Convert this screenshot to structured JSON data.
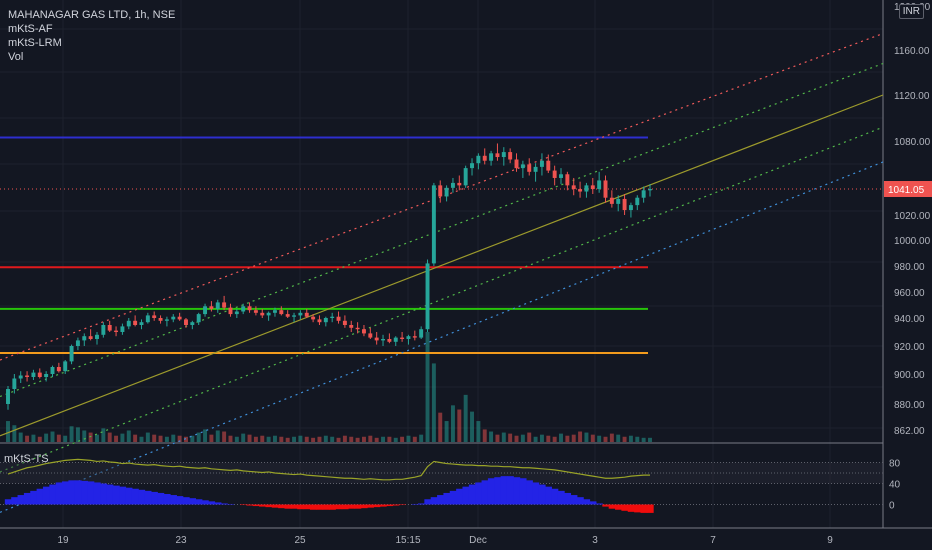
{
  "legend": {
    "title": "MAHANAGAR GAS LTD, 1h, NSE",
    "indicators": [
      "mKtS-AF",
      "mKtS-LRM",
      "Vol"
    ]
  },
  "currency": "INR",
  "oscillator_label": "mKtS-TS",
  "colors": {
    "background": "#131722",
    "up": "#26a69a",
    "down": "#ef5350",
    "price_tag": "#ef5350",
    "resistance_blue": "#2e2ecf",
    "level_red": "#e0191c",
    "level_green": "#27c40a",
    "level_orange": "#f29b1d",
    "channel_upper": "#f05a5a",
    "channel_mid": "#52b84a",
    "channel_center": "#9c9a2c",
    "channel_lower": "#3f8fd9",
    "histogram_blue": "#2323e6",
    "histogram_red": "#f00c0c",
    "ts_line": "#9aa428"
  },
  "chart_data": [
    {
      "type": "candlestick",
      "title": "MAHANAGAR GAS LTD, 1h, NSE",
      "x_tick_labels": [
        "19",
        "23",
        "25",
        "15:15",
        "Dec",
        "3",
        "7",
        "9"
      ],
      "y_ticks": [
        862,
        880,
        900,
        920,
        940,
        960,
        980,
        1000,
        1020,
        1041.05,
        1080,
        1120,
        1160,
        1200
      ],
      "y_tick_labels": [
        "862.00",
        "880.00",
        "900.00",
        "920.00",
        "940.00",
        "960.00",
        "980.00",
        "1000.00",
        "1020.00",
        "1041.05",
        "1080.00",
        "1120.00",
        "1160.00",
        "1200.00"
      ],
      "last_price": 1041.05,
      "last_price_label": "1041.05",
      "ylim": [
        855,
        1200
      ],
      "horizontal_levels": [
        {
          "price": 1083,
          "color": "resistance_blue"
        },
        {
          "price": 979,
          "color": "level_red"
        },
        {
          "price": 947,
          "color": "level_green"
        },
        {
          "price": 915,
          "color": "level_orange"
        }
      ],
      "channel_lines": [
        {
          "color": "channel_upper",
          "style": "dotted",
          "start": 910,
          "end": 1175
        },
        {
          "color": "channel_mid",
          "style": "dotted",
          "start": 885,
          "end": 1148
        },
        {
          "color": "channel_center",
          "style": "solid",
          "start": 858,
          "end": 1120
        },
        {
          "color": "channel_mid",
          "style": "dotted",
          "start": 833,
          "end": 1092
        },
        {
          "color": "channel_lower",
          "style": "dotted",
          "start": 805,
          "end": 1063
        }
      ],
      "candles": [
        [
          880,
          892,
          876,
          890
        ],
        [
          890,
          900,
          887,
          897
        ],
        [
          897,
          902,
          894,
          899
        ],
        [
          899,
          902,
          895,
          898
        ],
        [
          898,
          903,
          896,
          901
        ],
        [
          901,
          904,
          897,
          898
        ],
        [
          898,
          902,
          895,
          900
        ],
        [
          900,
          906,
          898,
          905
        ],
        [
          905,
          908,
          901,
          902
        ],
        [
          902,
          910,
          900,
          909
        ],
        [
          909,
          921,
          907,
          920
        ],
        [
          920,
          926,
          917,
          924
        ],
        [
          924,
          929,
          920,
          927
        ],
        [
          927,
          932,
          924,
          925
        ],
        [
          925,
          930,
          921,
          928
        ],
        [
          928,
          937,
          926,
          935
        ],
        [
          935,
          938,
          930,
          931
        ],
        [
          931,
          934,
          927,
          930
        ],
        [
          930,
          936,
          928,
          934
        ],
        [
          934,
          940,
          932,
          938
        ],
        [
          938,
          942,
          934,
          935
        ],
        [
          935,
          939,
          932,
          937
        ],
        [
          937,
          944,
          936,
          942
        ],
        [
          942,
          945,
          938,
          940
        ],
        [
          940,
          942,
          936,
          938
        ],
        [
          938,
          941,
          934,
          939
        ],
        [
          939,
          943,
          937,
          941
        ],
        [
          941,
          944,
          938,
          939
        ],
        [
          939,
          940,
          933,
          935
        ],
        [
          935,
          938,
          932,
          937
        ],
        [
          937,
          944,
          935,
          943
        ],
        [
          943,
          951,
          941,
          949
        ],
        [
          949,
          953,
          945,
          947
        ],
        [
          947,
          954,
          944,
          952
        ],
        [
          952,
          957,
          946,
          948
        ],
        [
          948,
          951,
          941,
          943
        ],
        [
          943,
          947,
          940,
          945
        ],
        [
          945,
          951,
          943,
          949
        ],
        [
          949,
          952,
          944,
          946
        ],
        [
          946,
          949,
          942,
          944
        ],
        [
          944,
          947,
          940,
          942
        ],
        [
          942,
          945,
          938,
          944
        ],
        [
          944,
          948,
          941,
          946
        ],
        [
          946,
          949,
          942,
          943
        ],
        [
          943,
          946,
          940,
          941
        ],
        [
          941,
          944,
          937,
          942
        ],
        [
          942,
          946,
          939,
          944
        ],
        [
          944,
          947,
          940,
          941
        ],
        [
          941,
          943,
          937,
          939
        ],
        [
          939,
          942,
          935,
          937
        ],
        [
          937,
          941,
          934,
          940
        ],
        [
          940,
          944,
          937,
          941
        ],
        [
          941,
          945,
          936,
          938
        ],
        [
          938,
          942,
          933,
          935
        ],
        [
          935,
          938,
          930,
          933
        ],
        [
          933,
          937,
          929,
          932
        ],
        [
          932,
          935,
          927,
          929
        ],
        [
          929,
          933,
          925,
          926
        ],
        [
          926,
          930,
          921,
          924
        ],
        [
          924,
          928,
          920,
          925
        ],
        [
          925,
          929,
          922,
          923
        ],
        [
          923,
          927,
          920,
          926
        ],
        [
          926,
          930,
          923,
          925
        ],
        [
          925,
          928,
          921,
          927
        ],
        [
          927,
          931,
          924,
          926
        ],
        [
          926,
          934,
          925,
          932
        ],
        [
          932,
          985,
          930,
          982
        ],
        [
          982,
          1046,
          980,
          1044
        ],
        [
          1044,
          1048,
          1030,
          1035
        ],
        [
          1035,
          1044,
          1031,
          1042
        ],
        [
          1042,
          1050,
          1038,
          1046
        ],
        [
          1046,
          1052,
          1040,
          1044
        ],
        [
          1044,
          1060,
          1042,
          1058
        ],
        [
          1058,
          1066,
          1052,
          1062
        ],
        [
          1062,
          1070,
          1057,
          1068
        ],
        [
          1068,
          1074,
          1061,
          1064
        ],
        [
          1064,
          1072,
          1060,
          1070
        ],
        [
          1070,
          1078,
          1064,
          1067
        ],
        [
          1067,
          1075,
          1060,
          1071
        ],
        [
          1071,
          1074,
          1062,
          1065
        ],
        [
          1065,
          1070,
          1055,
          1058
        ],
        [
          1058,
          1064,
          1050,
          1061
        ],
        [
          1061,
          1066,
          1052,
          1055
        ],
        [
          1055,
          1062,
          1047,
          1059
        ],
        [
          1059,
          1070,
          1052,
          1064
        ],
        [
          1064,
          1069,
          1054,
          1056
        ],
        [
          1056,
          1060,
          1044,
          1050
        ],
        [
          1050,
          1058,
          1045,
          1053
        ],
        [
          1053,
          1055,
          1040,
          1044
        ],
        [
          1044,
          1050,
          1036,
          1041
        ],
        [
          1041,
          1047,
          1034,
          1039
        ],
        [
          1039,
          1046,
          1034,
          1044
        ],
        [
          1044,
          1050,
          1037,
          1041
        ],
        [
          1041,
          1055,
          1038,
          1048
        ],
        [
          1048,
          1052,
          1030,
          1034
        ],
        [
          1034,
          1040,
          1026,
          1029
        ],
        [
          1029,
          1036,
          1023,
          1033
        ],
        [
          1033,
          1037,
          1020,
          1024
        ],
        [
          1024,
          1030,
          1018,
          1028
        ],
        [
          1028,
          1036,
          1024,
          1034
        ],
        [
          1034,
          1043,
          1030,
          1040
        ],
        [
          1040,
          1045,
          1035,
          1041
        ]
      ],
      "volumes": [
        40,
        32,
        18,
        12,
        14,
        10,
        16,
        20,
        14,
        12,
        30,
        28,
        22,
        18,
        14,
        26,
        18,
        12,
        16,
        22,
        14,
        10,
        18,
        14,
        12,
        10,
        14,
        12,
        10,
        12,
        18,
        24,
        14,
        22,
        20,
        12,
        10,
        16,
        14,
        10,
        12,
        10,
        12,
        10,
        8,
        10,
        12,
        10,
        8,
        10,
        12,
        10,
        8,
        12,
        10,
        8,
        10,
        12,
        8,
        10,
        10,
        8,
        10,
        12,
        10,
        14,
        210,
        150,
        56,
        40,
        70,
        62,
        90,
        58,
        40,
        24,
        20,
        14,
        18,
        16,
        12,
        14,
        18,
        10,
        14,
        12,
        10,
        16,
        12,
        14,
        20,
        18,
        14,
        12,
        10,
        16,
        14,
        10,
        12,
        10,
        8,
        8
      ]
    },
    {
      "type": "oscillator",
      "title": "mKtS-TS",
      "y_ticks": [
        0,
        40,
        80
      ],
      "y_tick_labels": [
        "0",
        "40",
        "80"
      ],
      "ylim": [
        -20,
        100
      ],
      "line": [
        58,
        62,
        66,
        70,
        72,
        75,
        78,
        80,
        82,
        84,
        85,
        86,
        85,
        84,
        82,
        83,
        81,
        80,
        78,
        79,
        77,
        76,
        75,
        76,
        74,
        73,
        72,
        73,
        71,
        70,
        69,
        70,
        68,
        67,
        66,
        65,
        66,
        64,
        63,
        62,
        61,
        62,
        60,
        59,
        58,
        57,
        58,
        56,
        55,
        54,
        53,
        52,
        51,
        50,
        50,
        49,
        48,
        49,
        48,
        47,
        47,
        48,
        48,
        50,
        52,
        55,
        72,
        82,
        80,
        78,
        77,
        76,
        75,
        75,
        74,
        74,
        73,
        73,
        72,
        72,
        71,
        70,
        70,
        69,
        68,
        67,
        66,
        64,
        62,
        60,
        58,
        56,
        54,
        52,
        50,
        50,
        51,
        52,
        54,
        55,
        56,
        56
      ],
      "histogram": [
        10,
        14,
        18,
        22,
        26,
        30,
        34,
        38,
        42,
        44,
        46,
        46,
        45,
        44,
        42,
        40,
        38,
        36,
        34,
        32,
        30,
        28,
        26,
        24,
        22,
        20,
        18,
        16,
        14,
        12,
        10,
        8,
        6,
        4,
        2,
        1,
        0,
        -1,
        -2,
        -3,
        -4,
        -5,
        -6,
        -7,
        -8,
        -8,
        -9,
        -9,
        -10,
        -10,
        -10,
        -10,
        -9,
        -9,
        -8,
        -8,
        -7,
        -6,
        -5,
        -4,
        -3,
        -2,
        -1,
        0,
        1,
        2,
        10,
        14,
        18,
        22,
        26,
        30,
        34,
        38,
        42,
        46,
        50,
        52,
        54,
        54,
        52,
        50,
        46,
        42,
        38,
        34,
        30,
        26,
        22,
        18,
        14,
        10,
        6,
        2,
        -4,
        -8,
        -10,
        -12,
        -14,
        -15,
        -16,
        -16
      ]
    }
  ]
}
